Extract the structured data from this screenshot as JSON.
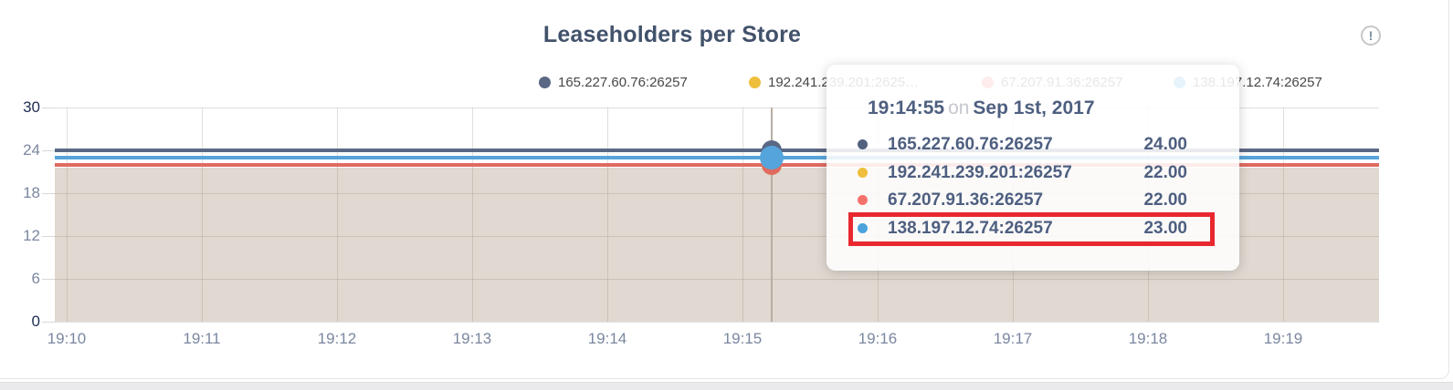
{
  "header": {
    "title": "Leaseholders per Store",
    "info_icon": "!"
  },
  "legend": {
    "items": [
      {
        "label": "165.227.60.76:26257",
        "color": "#5a6884"
      },
      {
        "label": "192.241.239.201:2625…",
        "color": "#eebe3c"
      },
      {
        "label": "67.207.91.36:26257",
        "color": "#f3736c"
      },
      {
        "label": "138.197.12.74:26257",
        "color": "#4ba2dc"
      }
    ]
  },
  "chart_data": {
    "type": "line",
    "title": "Leaseholders per Store",
    "x_ticks": [
      "19:10",
      "19:11",
      "19:12",
      "19:13",
      "19:14",
      "19:15",
      "19:16",
      "19:17",
      "19:18",
      "19:19"
    ],
    "y_ticks": [
      "30",
      "24",
      "18",
      "12",
      "6",
      "0"
    ],
    "ylim": [
      0,
      30
    ],
    "grid": true,
    "legend_position": "top",
    "area_fill_color": "#e0d9d1",
    "series": [
      {
        "name": "165.227.60.76:26257",
        "color": "#5a6884",
        "value": 24
      },
      {
        "name": "192.241.239.201:26257",
        "color": "#eebe3c",
        "value": 22
      },
      {
        "name": "67.207.91.36:26257",
        "color": "#e06a60",
        "value": 22
      },
      {
        "name": "138.197.12.74:26257",
        "color": "#55a5dc",
        "value": 23
      }
    ],
    "hover_time": "19:14:55"
  },
  "tooltip": {
    "time": "19:14:55",
    "sep": "on",
    "date": "Sep 1st, 2017",
    "rows": [
      {
        "label": "165.227.60.76:26257",
        "value": "24.00",
        "color": "#52617e",
        "highlighted": false
      },
      {
        "label": "192.241.239.201:26257",
        "value": "22.00",
        "color": "#eebe3c",
        "highlighted": false
      },
      {
        "label": "67.207.91.36:26257",
        "value": "22.00",
        "color": "#f3736c",
        "highlighted": false
      },
      {
        "label": "138.197.12.74:26257",
        "value": "23.00",
        "color": "#4ba2dc",
        "highlighted": true
      }
    ],
    "highlight_color": "#e8272e"
  }
}
